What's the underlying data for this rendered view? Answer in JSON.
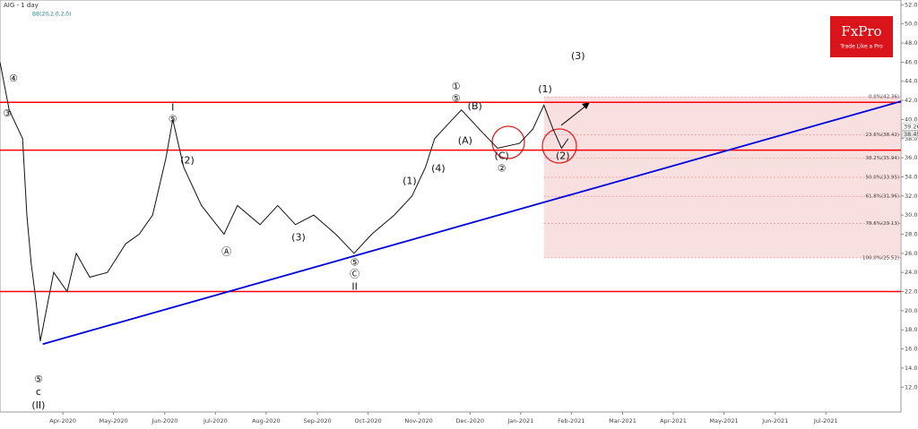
{
  "chart_data": {
    "type": "line",
    "title": "AIG - 1 day",
    "subtitle": "BB(20,2,0,2,0)",
    "logo": {
      "name": "FxPro",
      "tagline": "Trade Like a Pro"
    },
    "xlim": [
      2020.147,
      2021.623
    ],
    "ylim": [
      9.4,
      52.5
    ],
    "xticks": [
      {
        "value": 2020.25,
        "label": "Apr-2020"
      },
      {
        "value": 2020.333,
        "label": "May-2020"
      },
      {
        "value": 2020.417,
        "label": "Jun-2020"
      },
      {
        "value": 2020.5,
        "label": "Jul-2020"
      },
      {
        "value": 2020.583,
        "label": "Aug-2020"
      },
      {
        "value": 2020.667,
        "label": "Sep-2020"
      },
      {
        "value": 2020.75,
        "label": "Oct-2020"
      },
      {
        "value": 2020.833,
        "label": "Nov-2020"
      },
      {
        "value": 2020.917,
        "label": "Dec-2020"
      },
      {
        "value": 2021.0,
        "label": "Jan-2021"
      },
      {
        "value": 2021.083,
        "label": "Feb-2021"
      },
      {
        "value": 2021.167,
        "label": "Mar-2021"
      },
      {
        "value": 2021.25,
        "label": "Apr-2021"
      },
      {
        "value": 2021.333,
        "label": "May-2021"
      },
      {
        "value": 2021.417,
        "label": "Jun-2021"
      },
      {
        "value": 2021.5,
        "label": "Jul-2021"
      }
    ],
    "yticks": [
      {
        "value": 12,
        "label": "12.00"
      },
      {
        "value": 14,
        "label": "14.00"
      },
      {
        "value": 16,
        "label": "16.00"
      },
      {
        "value": 18,
        "label": "18.00"
      },
      {
        "value": 20,
        "label": "20.00"
      },
      {
        "value": 22,
        "label": "22.00"
      },
      {
        "value": 24,
        "label": "24.00"
      },
      {
        "value": 26,
        "label": "26.00"
      },
      {
        "value": 28,
        "label": "28.00"
      },
      {
        "value": 30,
        "label": "30.00"
      },
      {
        "value": 32,
        "label": "32.00"
      },
      {
        "value": 34,
        "label": "34.00"
      },
      {
        "value": 36,
        "label": "36.00"
      },
      {
        "value": 38,
        "label": "38.00"
      },
      {
        "value": 40,
        "label": "40.00"
      },
      {
        "value": 42,
        "label": "42.00"
      },
      {
        "value": 44,
        "label": "44.00"
      },
      {
        "value": 46,
        "label": "46.00"
      },
      {
        "value": 48,
        "label": "48.00"
      },
      {
        "value": 50,
        "label": "50.00"
      },
      {
        "value": 52,
        "label": "52.00"
      }
    ],
    "series": [
      {
        "name": "AIG",
        "color": "#111111",
        "x": [
          2020.147,
          2020.162,
          2020.184,
          2020.191,
          2020.198,
          2020.206,
          2020.213,
          2020.235,
          2020.257,
          2020.272,
          2020.294,
          2020.323,
          2020.353,
          2020.375,
          2020.397,
          2020.419,
          2020.43,
          2020.448,
          2020.477,
          2020.514,
          2020.536,
          2020.573,
          2020.602,
          2020.631,
          2020.661,
          2020.697,
          2020.727,
          2020.756,
          2020.793,
          2020.822,
          2020.844,
          2020.859,
          2020.888,
          2020.903,
          2020.932,
          2020.962,
          2020.998,
          2021.02,
          2021.038,
          2021.053,
          2021.067,
          2021.078
        ],
        "values": [
          46,
          41,
          38,
          30,
          25,
          21,
          16.8,
          24,
          22,
          26,
          23.5,
          24,
          27,
          28,
          30,
          36,
          40,
          35,
          31,
          28,
          31,
          29,
          31,
          29,
          30,
          28,
          26,
          28,
          30,
          32,
          35,
          38,
          40,
          41,
          39,
          37,
          37.5,
          39,
          41.5,
          39,
          37,
          38
        ]
      }
    ],
    "levels": [
      {
        "value": 41.8,
        "color": "#ff0000"
      },
      {
        "value": 36.8,
        "color": "#ff0000"
      },
      {
        "value": 22.0,
        "color": "#ff0000"
      }
    ],
    "trendline": {
      "x": [
        2020.217,
        2021.623
      ],
      "values": [
        16.5,
        41.9
      ],
      "color": "#0000dd"
    },
    "fibonacci": {
      "x_start": 2021.038,
      "color": "#f4c6c6",
      "levels": [
        {
          "value": 42.36,
          "label": "0.0%(42.36)"
        },
        {
          "value": 38.42,
          "label": "23.6%(38.42)"
        },
        {
          "value": 35.94,
          "label": "38.2%(35.94)"
        },
        {
          "value": 33.95,
          "label": "50.0%(33.95)"
        },
        {
          "value": 31.96,
          "label": "61.8%(31.96)"
        },
        {
          "value": 29.13,
          "label": "78.6%(29.13)"
        },
        {
          "value": 25.52,
          "label": "100.0%(25.52)"
        }
      ]
    },
    "price_tags": [
      {
        "value": 39.26,
        "label": "39.26"
      },
      {
        "value": 38.45,
        "label": "38.45"
      }
    ],
    "annotations": [
      {
        "text": "④",
        "x": 2020.169,
        "y": 44.24
      },
      {
        "text": "③",
        "x": 2020.159,
        "y": 40.58
      },
      {
        "text": "⑤",
        "x": 2020.21,
        "y": 12.78
      },
      {
        "text": "c",
        "x": 2020.21,
        "y": 11.47
      },
      {
        "text": "(II)",
        "x": 2020.21,
        "y": 10.06
      },
      {
        "text": "I",
        "x": 2020.43,
        "y": 41.23
      },
      {
        "text": "⑤",
        "x": 2020.43,
        "y": 40.01
      },
      {
        "text": "(2)",
        "x": 2020.454,
        "y": 35.69
      },
      {
        "text": "Ⓐ",
        "x": 2020.518,
        "y": 26.11
      },
      {
        "text": "(3)",
        "x": 2020.636,
        "y": 27.62
      },
      {
        "text": "⑤",
        "x": 2020.728,
        "y": 24.99
      },
      {
        "text": "Ⓒ",
        "x": 2020.728,
        "y": 23.77
      },
      {
        "text": "II",
        "x": 2020.728,
        "y": 22.45
      },
      {
        "text": "①",
        "x": 2020.894,
        "y": 43.39
      },
      {
        "text": "⑤",
        "x": 2020.894,
        "y": 42.17
      },
      {
        "text": "(B)",
        "x": 2020.925,
        "y": 41.33
      },
      {
        "text": "(A)",
        "x": 2020.909,
        "y": 37.76
      },
      {
        "text": "(C)",
        "x": 2020.969,
        "y": 36.16
      },
      {
        "text": "②",
        "x": 2020.969,
        "y": 34.85
      },
      {
        "text": "(1)",
        "x": 2021.04,
        "y": 43.11
      },
      {
        "text": "(2)",
        "x": 2021.069,
        "y": 36.16
      },
      {
        "text": "(3)",
        "x": 2021.094,
        "y": 46.58
      },
      {
        "text": "(4)",
        "x": 2020.865,
        "y": 34.85
      },
      {
        "text": "(1)",
        "x": 2020.818,
        "y": 33.53
      }
    ]
  }
}
